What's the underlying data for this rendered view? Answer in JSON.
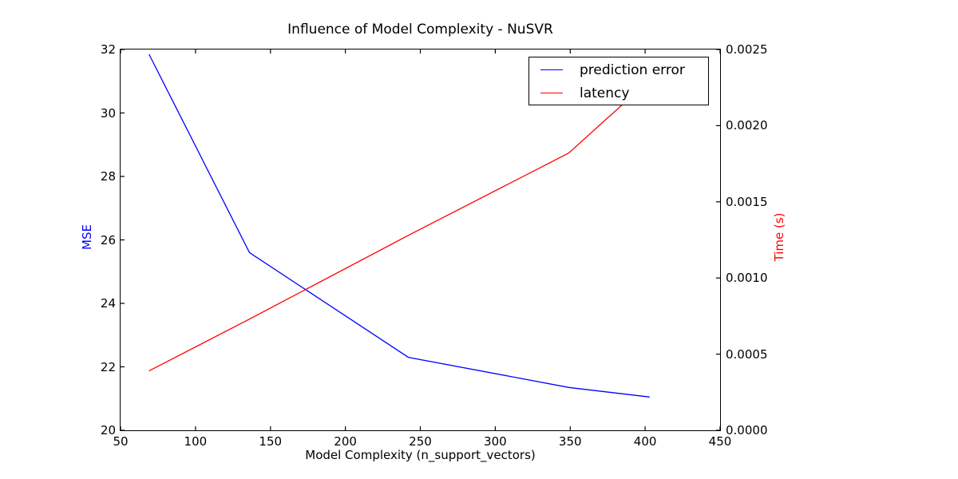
{
  "chart_data": {
    "type": "line",
    "title": "Influence of Model Complexity - NuSVR",
    "xlabel": "Model Complexity (n_support_vectors)",
    "xlim": [
      50,
      450
    ],
    "x_ticks": [
      50,
      100,
      150,
      200,
      250,
      300,
      350,
      400,
      450
    ],
    "grid": false,
    "axes": {
      "left": {
        "label": "MSE",
        "color": "#0000ff",
        "lim": [
          20,
          32
        ],
        "ticks": [
          "20",
          "22",
          "24",
          "26",
          "28",
          "30",
          "32"
        ]
      },
      "right": {
        "label": "Time (s)",
        "color": "#ff0000",
        "lim": [
          0,
          0.0025
        ],
        "ticks": [
          "0.0000",
          "0.0005",
          "0.0010",
          "0.0015",
          "0.0020",
          "0.0025"
        ]
      }
    },
    "series": [
      {
        "name": "prediction error",
        "color": "#0000ff",
        "axis": "left",
        "x": [
          69,
          136,
          242,
          349,
          403
        ],
        "y": [
          31.85,
          25.6,
          22.3,
          21.35,
          21.05
        ]
      },
      {
        "name": "latency",
        "color": "#ff0000",
        "axis": "right",
        "x": [
          69,
          136,
          242,
          349,
          403
        ],
        "y": [
          0.00039,
          0.00073,
          0.00128,
          0.00182,
          0.0023
        ]
      }
    ],
    "legend": {
      "position": "upper right",
      "entries": [
        "prediction error",
        "latency"
      ]
    }
  }
}
